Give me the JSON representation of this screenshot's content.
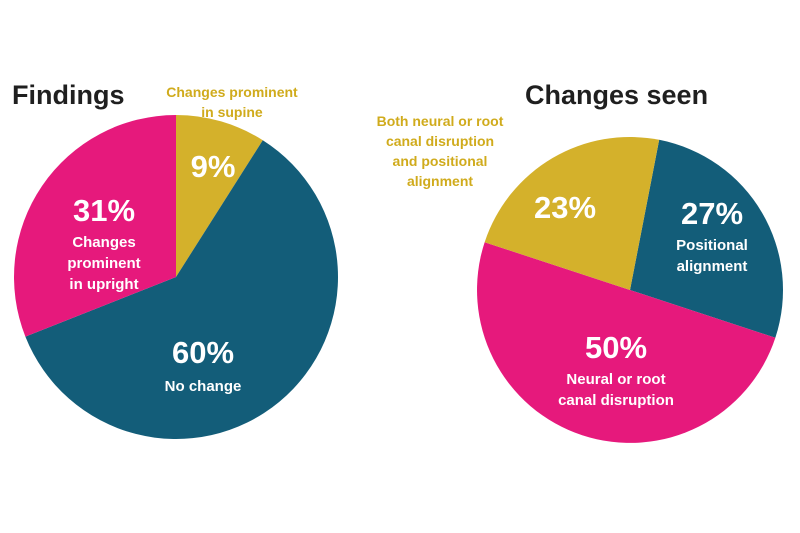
{
  "colors": {
    "pink": "#e6197c",
    "teal": "#135d79",
    "gold": "#d4b12b",
    "title": "#1f1f1f",
    "callout_text": "#d0ab1c",
    "label_text": "#ffffff"
  },
  "chart_data": [
    {
      "type": "pie",
      "title": "Findings",
      "legend": "none",
      "slices": [
        {
          "name": "Changes prominent in supine",
          "value": 9,
          "value_label": "9%",
          "color": "#d4b12b",
          "lines": [],
          "callout_lines": [
            "Changes prominent",
            "in supine"
          ]
        },
        {
          "name": "No change",
          "value": 60,
          "value_label": "60%",
          "color": "#135d79",
          "lines": [
            "No change"
          ],
          "callout_lines": []
        },
        {
          "name": "Changes prominent in upright",
          "value": 31,
          "value_label": "31%",
          "color": "#e6197c",
          "lines": [
            "Changes",
            "prominent",
            "in upright"
          ],
          "callout_lines": []
        }
      ]
    },
    {
      "type": "pie",
      "title": "Changes seen",
      "legend": "none",
      "slices": [
        {
          "name": "Positional alignment",
          "value": 27,
          "value_label": "27%",
          "color": "#135d79",
          "lines": [
            "Positional",
            "alignment"
          ],
          "callout_lines": []
        },
        {
          "name": "Neural or root canal disruption",
          "value": 50,
          "value_label": "50%",
          "color": "#e6197c",
          "lines": [
            "Neural or root",
            "canal disruption"
          ],
          "callout_lines": []
        },
        {
          "name": "Both neural or root canal disruption and positional alignment",
          "value": 23,
          "value_label": "23%",
          "color": "#d4b12b",
          "lines": [],
          "callout_lines": [
            "Both neural or root",
            "canal disruption",
            "and positional",
            "alignment"
          ]
        }
      ]
    }
  ]
}
